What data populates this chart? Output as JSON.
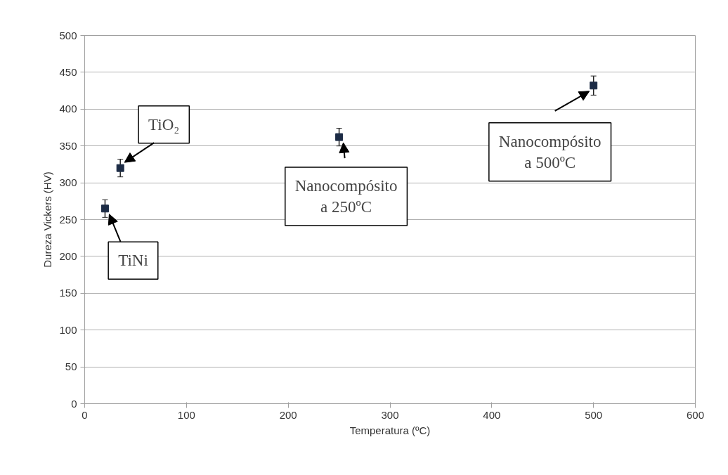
{
  "chart_data": {
    "type": "scatter",
    "xlabel": "Temperatura (ºC)",
    "ylabel": "Dureza Vickers (HV)",
    "x": [
      20,
      35,
      250,
      500
    ],
    "series": [
      {
        "color": "#1c2b45",
        "values": [
          265,
          320,
          362,
          432
        ],
        "errors": [
          12,
          12,
          12,
          13
        ]
      }
    ],
    "marker": "square",
    "grid": "y",
    "xlim": [
      0,
      600
    ],
    "xticks": [
      0,
      100,
      200,
      300,
      400,
      500,
      600
    ],
    "ylim": [
      0,
      500
    ],
    "yticks": [
      0,
      50,
      100,
      150,
      200,
      250,
      300,
      350,
      400,
      450,
      500
    ],
    "annotations": [
      {
        "text": "TiNi",
        "x": 20,
        "y": 265
      },
      {
        "text": "TiO₂",
        "x": 35,
        "y": 320
      },
      {
        "text": "Nanocompósito\na 250ºC",
        "x": 250,
        "y": 362
      },
      {
        "text": "Nanocompósito\na 500ºC",
        "x": 500,
        "y": 432
      }
    ]
  }
}
